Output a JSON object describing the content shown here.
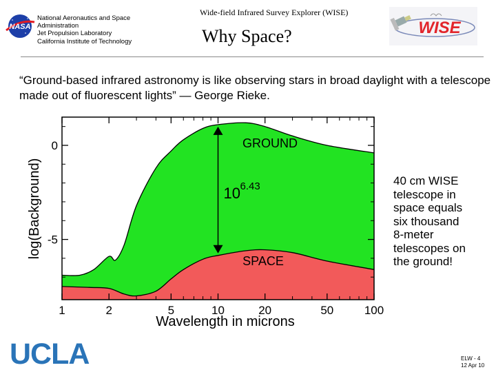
{
  "header": {
    "org_lines": [
      "National Aeronautics and Space",
      "Administration",
      "Jet Propulsion Laboratory",
      "California Institute of Technology"
    ],
    "mission_title": "Wide-field Infrared Survey Explorer (WISE)",
    "nasa_logo_text": "NASA",
    "wise_logo_text": "WISE"
  },
  "slide": {
    "title": "Why Space?",
    "quote": "“Ground-based infrared astronomy is like observing stars in broad daylight with a telescope made out of fluorescent lights” — George Rieke.",
    "side_text_lines": [
      "40 cm WISE",
      "telescope in",
      "space equals",
      "six thousand",
      "8-meter",
      "telescopes on",
      "the ground!"
    ]
  },
  "chart_data": {
    "type": "area",
    "xlabel": "Wavelength in microns",
    "ylabel": "log(Background)",
    "x_scale": "log",
    "xlim": [
      1,
      100
    ],
    "ylim": [
      -8.2,
      1.5
    ],
    "x_ticks": [
      1,
      2,
      5,
      10,
      20,
      50,
      100
    ],
    "y_ticks": [
      0,
      -5
    ],
    "series": [
      {
        "name": "GROUND",
        "color": "#22e322",
        "x": [
          1,
          1.3,
          1.6,
          2,
          2.2,
          2.5,
          3,
          4,
          5,
          6,
          8,
          10,
          15,
          20,
          30,
          50,
          100
        ],
        "y": [
          -6.9,
          -6.9,
          -6.6,
          -5.9,
          -6.1,
          -5.3,
          -3.2,
          -1.2,
          -0.3,
          0.3,
          0.9,
          1.1,
          1.2,
          1.0,
          0.5,
          0.0,
          -0.4
        ]
      },
      {
        "name": "SPACE",
        "color": "#f25a5a",
        "x": [
          1,
          1.5,
          2,
          2.5,
          3,
          4,
          5,
          6,
          8,
          10,
          15,
          20,
          30,
          50,
          100
        ],
        "y": [
          -7.5,
          -7.55,
          -7.6,
          -7.9,
          -8.0,
          -7.75,
          -7.1,
          -6.6,
          -6.05,
          -5.85,
          -5.6,
          -5.55,
          -5.7,
          -6.15,
          -6.6
        ]
      }
    ],
    "annotation": {
      "text": "10",
      "superscript": "6.43",
      "x": 10
    }
  },
  "branding": {
    "ucla": "UCLA"
  },
  "footer": {
    "slide_id": "ELW - 4",
    "date": "12 Apr 10"
  }
}
